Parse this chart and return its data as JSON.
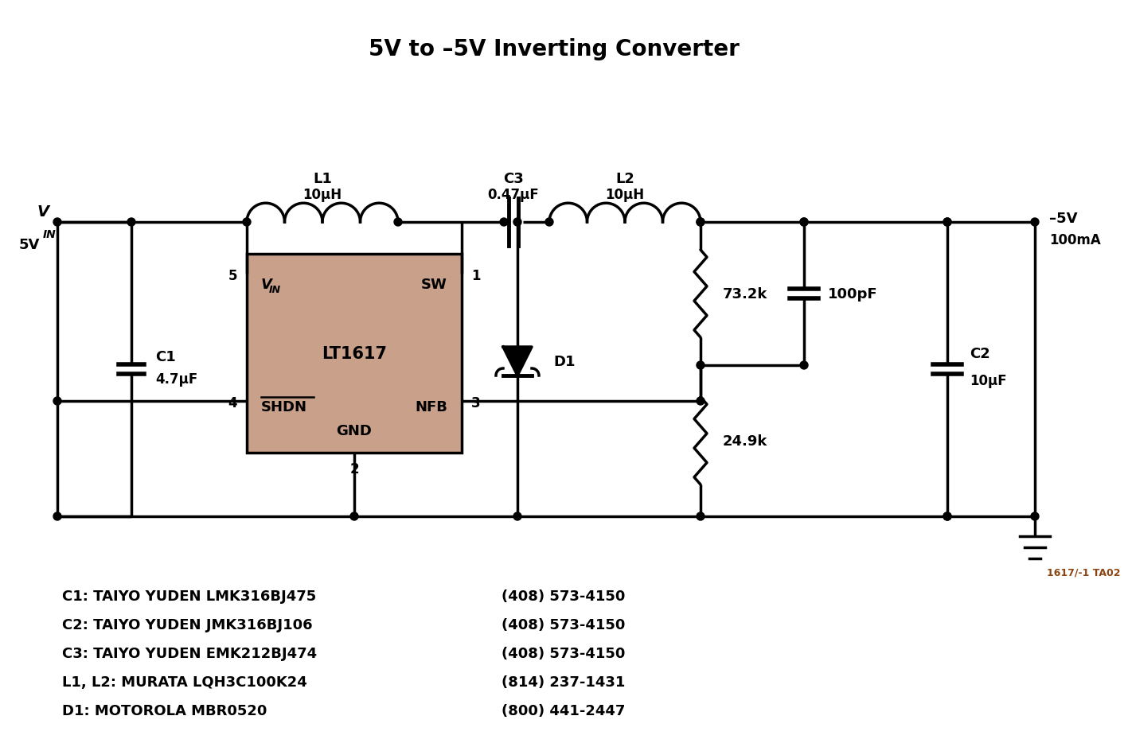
{
  "title": "5V to –5V Inverting Converter",
  "bg_color": "#ffffff",
  "line_color": "#000000",
  "box_color": "#c9a08a",
  "part_id": "1617/-1 TA02",
  "bom_lines": [
    [
      "C1: TAIYO YUDEN LMK316BJ475",
      "(408) 573-4150"
    ],
    [
      "C2: TAIYO YUDEN JMK316BJ106",
      "(408) 573-4150"
    ],
    [
      "C3: TAIYO YUDEN EMK212BJ474",
      "(408) 573-4150"
    ],
    [
      "L1, L2: MURATA LQH3C100K24",
      "(814) 237-1431"
    ],
    [
      "D1: MOTOROLA MBR0520",
      "(800) 441-2447"
    ]
  ],
  "lw": 2.5
}
